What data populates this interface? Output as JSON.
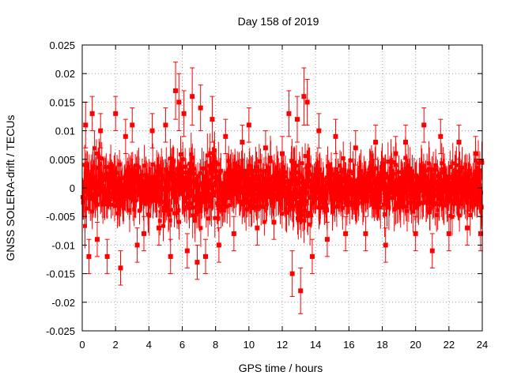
{
  "chart_data": {
    "type": "scatter",
    "title": "Day 158 of 2019",
    "xlabel": "GPS time / hours",
    "ylabel": "GNSS SOLERA-drift / TECUs",
    "xlim": [
      0,
      24
    ],
    "ylim": [
      -0.025,
      0.025
    ],
    "x_ticks": [
      0,
      2,
      4,
      6,
      8,
      10,
      12,
      14,
      16,
      18,
      20,
      22,
      24
    ],
    "x_tick_labels": [
      "0",
      "2",
      "4",
      "6",
      "8",
      "10",
      "12",
      "14",
      "16",
      "18",
      "20",
      "22",
      "24"
    ],
    "y_ticks": [
      0.025,
      0.02,
      0.015,
      0.01,
      0.005,
      0,
      -0.005,
      -0.01,
      -0.015,
      -0.02,
      -0.025
    ],
    "y_tick_labels": [
      "0.025",
      "0.02",
      "0.015",
      "0.01",
      "0.005",
      "0",
      "-0.005",
      "-0.01",
      "-0.015",
      "-0.02",
      "-0.025"
    ],
    "grid": true,
    "series_color": "#ff0000",
    "series": [
      {
        "name": "SOLERA-drift",
        "marker": "square",
        "x": [
          0.2,
          0.4,
          0.6,
          0.9,
          1.1,
          1.5,
          2.0,
          2.3,
          2.6,
          3.0,
          3.3,
          3.7,
          4.2,
          4.6,
          5.0,
          5.3,
          5.6,
          5.8,
          6.1,
          6.3,
          6.6,
          6.9,
          7.1,
          7.4,
          7.8,
          8.2,
          8.6,
          9.1,
          9.6,
          10.0,
          10.5,
          11.0,
          11.5,
          12.0,
          12.4,
          12.6,
          12.9,
          13.1,
          13.3,
          13.5,
          13.8,
          14.2,
          14.7,
          15.2,
          15.8,
          16.4,
          17.0,
          17.6,
          18.2,
          18.8,
          19.4,
          20.0,
          20.5,
          21.0,
          21.5,
          22.0,
          22.6,
          23.1,
          23.6,
          23.9
        ],
        "y": [
          0.011,
          -0.012,
          0.013,
          -0.009,
          0.01,
          -0.012,
          0.013,
          -0.014,
          0.009,
          0.011,
          -0.01,
          -0.008,
          0.01,
          -0.007,
          0.011,
          -0.012,
          0.017,
          0.015,
          0.013,
          -0.011,
          0.016,
          -0.013,
          0.014,
          -0.012,
          0.012,
          -0.01,
          0.009,
          -0.008,
          0.008,
          0.011,
          -0.007,
          0.007,
          -0.006,
          0.006,
          0.013,
          -0.015,
          0.012,
          -0.018,
          0.016,
          0.015,
          -0.012,
          0.01,
          -0.009,
          0.009,
          -0.008,
          0.007,
          -0.008,
          0.008,
          -0.01,
          0.006,
          0.008,
          -0.008,
          0.011,
          -0.011,
          0.009,
          -0.008,
          0.008,
          -0.007,
          0.006,
          -0.008
        ],
        "yerr": [
          0.004,
          0.003,
          0.003,
          0.003,
          0.003,
          0.003,
          0.003,
          0.003,
          0.003,
          0.003,
          0.003,
          0.003,
          0.003,
          0.003,
          0.003,
          0.003,
          0.005,
          0.005,
          0.004,
          0.003,
          0.005,
          0.003,
          0.004,
          0.003,
          0.004,
          0.003,
          0.003,
          0.003,
          0.003,
          0.003,
          0.003,
          0.003,
          0.003,
          0.003,
          0.004,
          0.004,
          0.004,
          0.004,
          0.005,
          0.004,
          0.003,
          0.003,
          0.003,
          0.003,
          0.003,
          0.003,
          0.003,
          0.003,
          0.003,
          0.003,
          0.003,
          0.003,
          0.003,
          0.003,
          0.003,
          0.003,
          0.003,
          0.003,
          0.003,
          0.003
        ]
      }
    ],
    "note": "Dense noise cloud: samples every ~0.02 h, values scattered roughly uniformly within about ±0.006 TECU with ±0.003 error bars; the explicit points above are the visible outliers."
  }
}
